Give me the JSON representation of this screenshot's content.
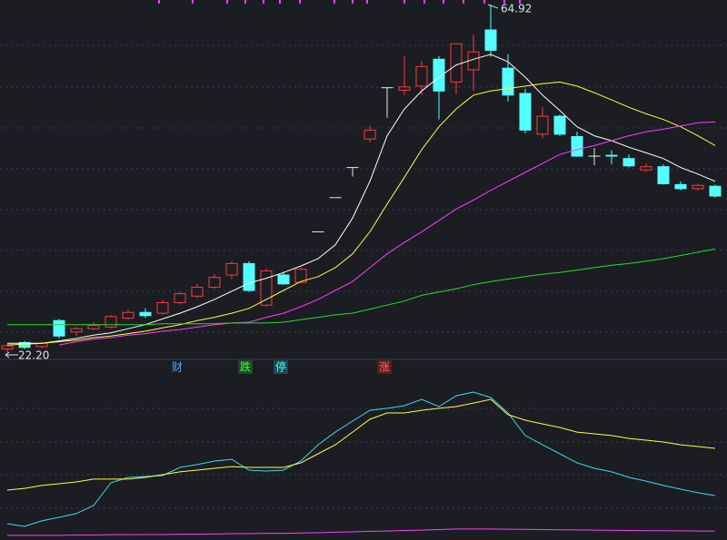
{
  "chart_data": {
    "type": "candlestick",
    "up_color": "#ff3b3b",
    "down_color": "#54ffff",
    "flat_color": "#e8e8e8",
    "ylim": [
      21.44,
      65.48
    ],
    "open": [
      22.6,
      23.4,
      22.9,
      26.1,
      24.7,
      25.1,
      25.3,
      26.4,
      27.1,
      27.0,
      28.3,
      29.1,
      30.2,
      31.7,
      33.1,
      28.0,
      31.7,
      30.8,
      37.0,
      41.2,
      44.9,
      48.4,
      54.7,
      54.4,
      54.9,
      58.2,
      55.4,
      56.9,
      61.8,
      57.1,
      54.0,
      49.0,
      51.2,
      48.7,
      46.3,
      46.4,
      46.0,
      44.6,
      45.0,
      42.8,
      42.3,
      42.6
    ],
    "high": [
      23.2,
      23.6,
      23.5,
      26.3,
      25.3,
      25.9,
      26.8,
      27.4,
      27.6,
      28.6,
      29.6,
      30.6,
      31.8,
      33.4,
      33.4,
      32.5,
      32.1,
      32.6,
      37.0,
      41.2,
      44.9,
      50.0,
      54.7,
      58.6,
      58.0,
      58.6,
      60.1,
      61.2,
      64.92,
      58.8,
      54.6,
      52.3,
      51.4,
      49.3,
      47.3,
      47.0,
      46.5,
      45.4,
      45.3,
      43.2,
      42.9,
      42.8
    ],
    "low": [
      22.2,
      22.6,
      22.7,
      23.9,
      24.2,
      24.9,
      25.1,
      26.2,
      26.4,
      26.8,
      28.1,
      28.9,
      30.0,
      31.2,
      29.6,
      27.8,
      30.5,
      30.7,
      37.0,
      41.2,
      43.8,
      48.0,
      51.0,
      53.8,
      53.8,
      50.8,
      53.9,
      54.3,
      58.5,
      53.0,
      49.1,
      48.5,
      48.8,
      46.2,
      45.2,
      45.3,
      44.9,
      44.4,
      42.8,
      42.1,
      42.1,
      41.2
    ],
    "close": [
      23.0,
      22.8,
      23.3,
      24.2,
      25.1,
      25.5,
      26.6,
      27.1,
      26.7,
      28.3,
      29.4,
      30.2,
      31.4,
      33.1,
      29.8,
      32.2,
      30.6,
      32.4,
      37.0,
      41.2,
      44.9,
      49.5,
      54.7,
      54.8,
      57.3,
      54.3,
      60.1,
      59.1,
      59.3,
      53.8,
      49.5,
      51.2,
      49.0,
      46.3,
      46.3,
      46.3,
      45.1,
      45.0,
      42.9,
      42.3,
      42.7,
      41.4
    ],
    "max_label": "64.92",
    "min_label": "22.20",
    "moving_averages": [
      {
        "color": "#ffffff",
        "values": [
          23.3,
          23.3,
          23.3,
          23.6,
          23.9,
          24.3,
          24.6,
          25.1,
          25.6,
          26.3,
          27.0,
          27.8,
          28.7,
          29.7,
          30.7,
          31.3,
          32.0,
          32.8,
          33.7,
          35.4,
          38.7,
          43.2,
          48.8,
          52.1,
          54.3,
          56.0,
          57.5,
          58.2,
          58.8,
          57.9,
          56.0,
          53.8,
          51.9,
          49.9,
          48.8,
          48.2,
          47.4,
          46.7,
          46.0,
          44.9,
          44.1,
          43.2
        ]
      },
      {
        "color": "#ffff3c",
        "values": [
          23.1,
          23.2,
          23.3,
          23.5,
          23.7,
          24.0,
          24.2,
          24.5,
          24.8,
          25.2,
          25.6,
          26.1,
          26.5,
          27.0,
          27.6,
          28.7,
          29.8,
          30.9,
          31.5,
          32.6,
          34.3,
          37.0,
          40.4,
          43.7,
          47.1,
          49.9,
          52.1,
          53.8,
          54.3,
          54.6,
          54.9,
          55.2,
          55.4,
          54.9,
          54.1,
          53.2,
          52.3,
          51.5,
          50.8,
          49.9,
          48.8,
          47.6
        ]
      },
      {
        "color": "#ff3cff",
        "values": [
          null,
          null,
          null,
          23.1,
          23.5,
          23.8,
          24.0,
          24.3,
          24.5,
          24.8,
          25.0,
          25.3,
          25.6,
          25.8,
          25.9,
          26.5,
          27.0,
          27.8,
          28.7,
          29.8,
          30.9,
          32.6,
          34.3,
          35.7,
          37.0,
          38.4,
          39.8,
          40.9,
          42.1,
          43.2,
          44.3,
          45.4,
          46.5,
          47.1,
          47.6,
          48.2,
          48.8,
          49.3,
          49.6,
          50.0,
          50.4,
          50.5
        ]
      },
      {
        "color": "#2ed82e",
        "values": [
          25.6,
          25.6,
          25.6,
          25.6,
          25.6,
          25.6,
          25.6,
          25.6,
          25.6,
          25.7,
          25.7,
          25.7,
          25.7,
          25.8,
          25.8,
          25.8,
          25.9,
          26.2,
          26.5,
          26.8,
          27.0,
          27.5,
          28.0,
          28.5,
          29.2,
          29.6,
          30.0,
          30.5,
          30.9,
          31.2,
          31.5,
          31.8,
          32.0,
          32.3,
          32.6,
          32.9,
          33.1,
          33.4,
          33.7,
          34.1,
          34.5,
          34.9
        ]
      }
    ],
    "annotations": [
      {
        "text": "财",
        "color": "#4aa8ff",
        "background": "#1b1d23"
      },
      {
        "text": "跌",
        "color": "#3cff3c",
        "background": "#1f4a22"
      },
      {
        "text": "停",
        "color": "#54ffff",
        "background": "#1a4a55"
      },
      {
        "text": "涨",
        "color": "#ff6a6a",
        "background": "#5a1c1c"
      }
    ],
    "indicator": {
      "ylim": [
        0,
        100
      ],
      "series": [
        {
          "color": "#3cd8f0",
          "values": [
            9.2,
            7.7,
            10.8,
            12.8,
            14.9,
            19.5,
            32.3,
            35.4,
            35.9,
            36.4,
            41.0,
            42.6,
            44.6,
            45.6,
            39.5,
            39.0,
            39.5,
            44.6,
            53.8,
            61.0,
            67.2,
            73.3,
            74.4,
            75.9,
            79.5,
            75.4,
            81.5,
            83.6,
            80.5,
            71.8,
            59.0,
            53.8,
            48.7,
            43.6,
            40.5,
            38.5,
            35.4,
            33.3,
            30.8,
            28.7,
            26.7,
            25.1
          ]
        },
        {
          "color": "#ffff3c",
          "values": [
            28.2,
            29.2,
            30.8,
            31.8,
            32.8,
            34.4,
            34.4,
            34.4,
            35.4,
            36.9,
            38.5,
            39.5,
            40.5,
            41.5,
            41.0,
            41.0,
            41.0,
            43.6,
            48.7,
            53.8,
            61.0,
            68.2,
            71.8,
            71.8,
            73.3,
            74.4,
            75.4,
            77.4,
            79.5,
            70.8,
            67.7,
            65.6,
            63.6,
            61.0,
            60.0,
            59.0,
            57.4,
            56.4,
            55.4,
            53.8,
            52.8,
            51.8
          ]
        },
        {
          "color": "#ff3cff",
          "values": [
            2.6,
            2.6,
            2.6,
            2.6,
            2.8,
            2.8,
            3.0,
            3.0,
            3.1,
            3.1,
            3.3,
            3.3,
            3.4,
            3.6,
            3.6,
            3.8,
            3.8,
            4.0,
            4.1,
            4.4,
            4.6,
            4.9,
            5.1,
            5.4,
            5.6,
            5.9,
            6.2,
            6.2,
            6.2,
            6.1,
            6.0,
            5.9,
            5.8,
            5.7,
            5.6,
            5.5,
            5.4,
            5.3,
            5.3,
            5.2,
            5.1,
            5.1
          ]
        }
      ]
    }
  }
}
